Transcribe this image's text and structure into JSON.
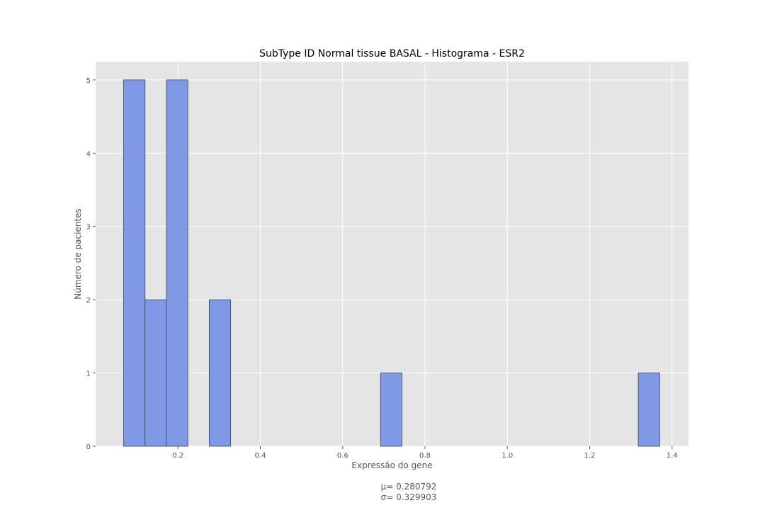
{
  "chart_data": {
    "type": "bar",
    "title": "SubType ID Normal tissue BASAL - Histograma - ESR2",
    "xlabel": "Expressão do gene",
    "ylabel": "Número de pacientes",
    "xlim": [
      0.0,
      1.44
    ],
    "ylim": [
      0,
      5.25
    ],
    "x_ticks": [
      0.2,
      0.4,
      0.6,
      0.8,
      1.0,
      1.2,
      1.4
    ],
    "x_tick_labels": [
      "0.2",
      "0.4",
      "0.6",
      "0.8",
      "1.0",
      "1.2",
      "1.4"
    ],
    "y_ticks": [
      0,
      1,
      2,
      3,
      4,
      5
    ],
    "y_tick_labels": [
      "0",
      "1",
      "2",
      "3",
      "4",
      "5"
    ],
    "bin_width": 0.052,
    "bins": [
      {
        "start": 0.068,
        "count": 5
      },
      {
        "start": 0.12,
        "count": 2
      },
      {
        "start": 0.172,
        "count": 5
      },
      {
        "start": 0.276,
        "count": 2
      },
      {
        "start": 0.692,
        "count": 1
      },
      {
        "start": 1.318,
        "count": 1
      }
    ],
    "grid": true,
    "colors": {
      "bar_fill": "#7f99e6",
      "bar_edge": "#34445f",
      "plot_background": "#e5e5e5",
      "grid": "#ffffff"
    }
  },
  "stats": {
    "mean_label": "μ= 0.280792",
    "std_label": "σ= 0.329903"
  }
}
